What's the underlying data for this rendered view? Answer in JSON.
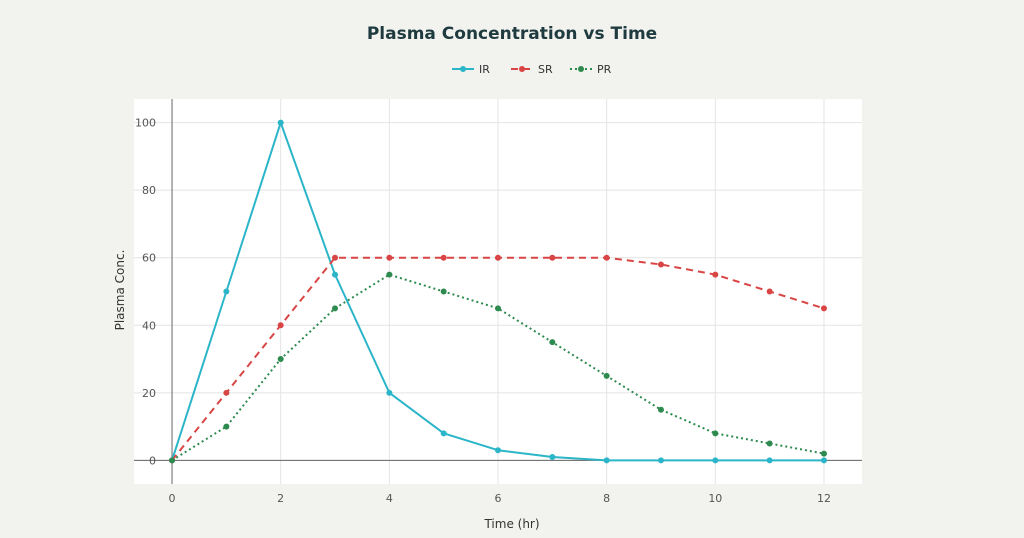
{
  "chart_data": {
    "type": "line",
    "title": "Plasma Concentration vs Time",
    "xlabel": "Time (hr)",
    "ylabel": "Plasma Conc.",
    "x": [
      0,
      1,
      2,
      3,
      4,
      5,
      6,
      7,
      8,
      9,
      10,
      11,
      12
    ],
    "xlim": [
      -0.7,
      12.7
    ],
    "ylim": [
      -7,
      107
    ],
    "xticks": [
      0,
      2,
      4,
      6,
      8,
      10,
      12
    ],
    "yticks": [
      0,
      20,
      40,
      60,
      80,
      100
    ],
    "grid": true,
    "legend_position": "top-center",
    "series": [
      {
        "name": "IR",
        "color": "#2bb5c8",
        "dash": "solid",
        "values": [
          0,
          50,
          100,
          55,
          20,
          8,
          3,
          1,
          0,
          0,
          0,
          0,
          0
        ]
      },
      {
        "name": "SR",
        "color": "#d94545",
        "dash": "dashed",
        "values": [
          0,
          20,
          40,
          60,
          60,
          60,
          60,
          60,
          60,
          58,
          55,
          50,
          45
        ]
      },
      {
        "name": "PR",
        "color": "#2e8b4f",
        "dash": "dotted",
        "values": [
          0,
          10,
          30,
          45,
          55,
          50,
          45,
          35,
          25,
          15,
          8,
          5,
          2
        ]
      }
    ]
  }
}
